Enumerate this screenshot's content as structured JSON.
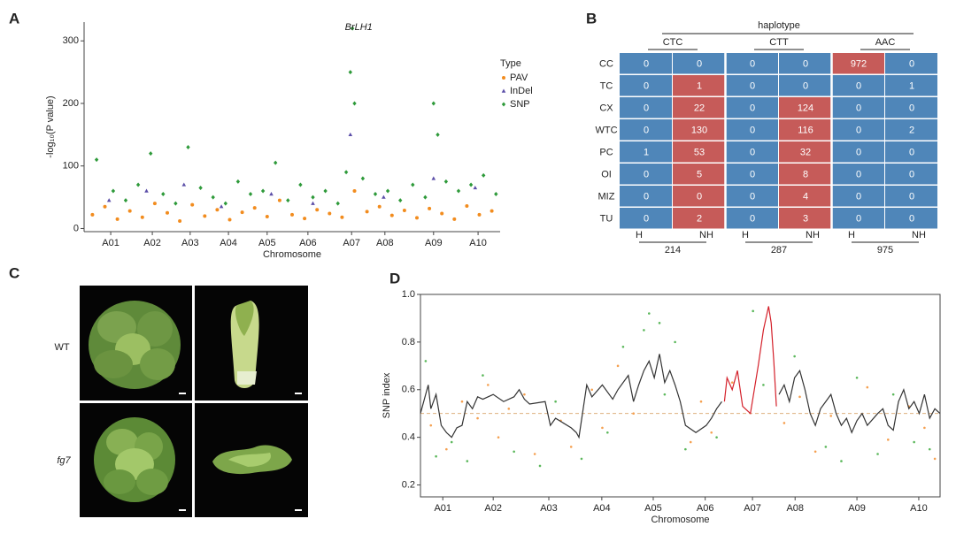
{
  "chart_data": [
    {
      "type": "scatter",
      "panel_label": "A",
      "annotation": "BrLH1",
      "x_label": "Chromosome",
      "y_label": "-log₁₀(P value)",
      "xlim": [
        0,
        100
      ],
      "ylim": [
        -5,
        330
      ],
      "xticks": [
        {
          "value": 6.4,
          "label": "A01"
        },
        {
          "value": 16.4,
          "label": "A02"
        },
        {
          "value": 25.5,
          "label": "A03"
        },
        {
          "value": 34.7,
          "label": "A04"
        },
        {
          "value": 44,
          "label": "A05"
        },
        {
          "value": 53.8,
          "label": "A06"
        },
        {
          "value": 64.3,
          "label": "A07"
        },
        {
          "value": 72.3,
          "label": "A08"
        },
        {
          "value": 84,
          "label": "A09"
        },
        {
          "value": 94.7,
          "label": "A10"
        }
      ],
      "yticks": [
        0,
        100,
        200,
        300
      ],
      "legend_title": "Type",
      "series": [
        {
          "name": "PAV",
          "color": "#f28c1e",
          "marker": "circle",
          "x": [
            2,
            5,
            8,
            11,
            14,
            17,
            20,
            23,
            26,
            29,
            32,
            35,
            38,
            41,
            44,
            47,
            50,
            53,
            56,
            59,
            62,
            65,
            68,
            71,
            74,
            77,
            80,
            83,
            86,
            89,
            92,
            95,
            98
          ],
          "values": [
            22,
            35,
            15,
            28,
            18,
            40,
            25,
            12,
            38,
            20,
            30,
            14,
            26,
            33,
            19,
            45,
            22,
            16,
            30,
            24,
            18,
            60,
            27,
            35,
            21,
            29,
            17,
            32,
            24,
            15,
            36,
            22,
            28
          ]
        },
        {
          "name": "InDel",
          "color": "#5b4ea8",
          "marker": "triangle",
          "x": [
            6,
            15,
            24,
            33,
            45,
            55,
            64,
            72,
            84,
            94
          ],
          "values": [
            45,
            60,
            70,
            35,
            55,
            40,
            150,
            50,
            80,
            65
          ]
        },
        {
          "name": "SNP",
          "color": "#2e9a3a",
          "marker": "diamond",
          "x": [
            3,
            7,
            10,
            13,
            16,
            19,
            22,
            25,
            28,
            31,
            34,
            37,
            40,
            43,
            46,
            49,
            52,
            55,
            58,
            61,
            63,
            64,
            64.5,
            65,
            67,
            70,
            73,
            76,
            79,
            82,
            84,
            85,
            87,
            90,
            93,
            96,
            99
          ],
          "values": [
            110,
            60,
            45,
            70,
            120,
            55,
            40,
            130,
            65,
            50,
            40,
            75,
            55,
            60,
            105,
            45,
            70,
            50,
            60,
            40,
            90,
            250,
            320,
            200,
            80,
            55,
            60,
            45,
            70,
            50,
            200,
            150,
            75,
            60,
            70,
            85,
            55
          ]
        }
      ]
    },
    {
      "type": "scatter",
      "panel_label": "D",
      "frame": true,
      "x_label": "Chromosome",
      "y_label": "SNP index",
      "xlim": [
        0,
        100
      ],
      "ylim": [
        0.15,
        1
      ],
      "xticks": [
        {
          "value": 4.3,
          "label": "A01"
        },
        {
          "value": 14,
          "label": "A02"
        },
        {
          "value": 24.7,
          "label": "A03"
        },
        {
          "value": 34.9,
          "label": "A04"
        },
        {
          "value": 44.8,
          "label": "A05"
        },
        {
          "value": 54.8,
          "label": "A06"
        },
        {
          "value": 63.9,
          "label": "A07"
        },
        {
          "value": 72.1,
          "label": "A08"
        },
        {
          "value": 84,
          "label": "A09"
        },
        {
          "value": 95.9,
          "label": "A10"
        }
      ],
      "yticks": [
        0.2,
        0.4,
        0.6,
        0.8,
        {
          "value": 1,
          "label": "1.0"
        }
      ],
      "reference_line": 0.5,
      "series": [
        {
          "color": "#f5a050",
          "marker": "dot",
          "x": [
            2,
            5,
            8,
            11,
            13,
            15,
            17,
            20,
            22,
            27,
            29,
            33,
            35,
            38,
            41,
            52,
            54,
            56,
            60,
            70,
            73,
            76,
            79,
            86,
            90,
            94,
            97,
            99
          ],
          "values": [
            0.45,
            0.35,
            0.55,
            0.48,
            0.62,
            0.4,
            0.52,
            0.58,
            0.33,
            0.47,
            0.36,
            0.6,
            0.44,
            0.7,
            0.5,
            0.38,
            0.55,
            0.42,
            0.63,
            0.46,
            0.57,
            0.34,
            0.49,
            0.61,
            0.39,
            0.53,
            0.44,
            0.31
          ]
        },
        {
          "color": "#5cb85c",
          "marker": "dot",
          "x": [
            1,
            3,
            6,
            9,
            12,
            18,
            23,
            26,
            31,
            36,
            39,
            43,
            44,
            46,
            47,
            49,
            51,
            57,
            64,
            66,
            72,
            78,
            81,
            84,
            88,
            91,
            95,
            98
          ],
          "values": [
            0.72,
            0.32,
            0.38,
            0.3,
            0.66,
            0.34,
            0.28,
            0.55,
            0.31,
            0.42,
            0.78,
            0.85,
            0.92,
            0.88,
            0.58,
            0.8,
            0.35,
            0.4,
            0.93,
            0.62,
            0.74,
            0.36,
            0.3,
            0.65,
            0.33,
            0.58,
            0.38,
            0.35
          ]
        },
        {
          "type": "line",
          "color": "#333333",
          "x": [
            0,
            1.5,
            2,
            3,
            4,
            5,
            6,
            7,
            8,
            9,
            10,
            11,
            12,
            14,
            16,
            18,
            19,
            20,
            21,
            24,
            25,
            26,
            29,
            30,
            30.5,
            32,
            33,
            35,
            37,
            38,
            40,
            41,
            42,
            43,
            44,
            45,
            46,
            47,
            48,
            49,
            50,
            51,
            53,
            55,
            56,
            57,
            58,
            63,
            69,
            70,
            71,
            72,
            73,
            74,
            75,
            76,
            77,
            78,
            79,
            80,
            81,
            82,
            83,
            84,
            85,
            86,
            88,
            89,
            90,
            91,
            92,
            93,
            94,
            95,
            96,
            97,
            98,
            99,
            100
          ],
          "values": [
            0.5,
            0.62,
            0.52,
            0.58,
            0.45,
            0.42,
            0.4,
            0.44,
            0.45,
            0.55,
            0.52,
            0.57,
            0.56,
            0.58,
            0.55,
            0.57,
            0.6,
            0.56,
            0.54,
            0.55,
            0.45,
            0.48,
            0.44,
            0.42,
            0.4,
            0.62,
            0.57,
            0.62,
            0.56,
            0.6,
            0.66,
            0.55,
            0.62,
            0.68,
            0.72,
            0.65,
            0.75,
            0.63,
            0.68,
            0.62,
            0.55,
            0.45,
            0.42,
            0.45,
            0.48,
            0.52,
            0.55,
            null,
            0.58,
            0.62,
            0.55,
            0.65,
            0.68,
            0.6,
            0.5,
            0.45,
            0.52,
            0.55,
            0.58,
            0.5,
            0.45,
            0.48,
            0.42,
            0.47,
            0.5,
            0.45,
            0.5,
            0.52,
            0.45,
            0.43,
            0.55,
            0.6,
            0.52,
            0.55,
            0.5,
            0.58,
            0.48,
            0.52,
            0.5
          ]
        },
        {
          "type": "line",
          "color": "#d4202a",
          "x": [
            58.5,
            59,
            60,
            61,
            62,
            63.5,
            65,
            66,
            67,
            67.5,
            68,
            68.5
          ],
          "values": [
            0.55,
            0.65,
            0.6,
            0.68,
            0.53,
            0.5,
            0.7,
            0.85,
            0.95,
            0.88,
            0.72,
            0.53
          ]
        }
      ]
    }
  ],
  "table": {
    "panel_label": "B",
    "title": "haplotype",
    "groups": [
      {
        "name": "CTC",
        "total": 214
      },
      {
        "name": "CTT",
        "total": 287
      },
      {
        "name": "AAC",
        "total": 975
      }
    ],
    "subcolumns": [
      "H",
      "NH",
      "H",
      "NH",
      "H",
      "NH"
    ],
    "colors": {
      "normal": "#4f86b9",
      "highlight": "#c65b59"
    },
    "rows": [
      {
        "label": "CC",
        "cells": [
          0,
          0,
          0,
          0,
          972,
          0
        ],
        "highlighted": [
          0,
          0,
          0,
          0,
          1,
          0
        ]
      },
      {
        "label": "TC",
        "cells": [
          0,
          1,
          0,
          0,
          0,
          1
        ],
        "highlighted": [
          0,
          1,
          0,
          0,
          0,
          0
        ]
      },
      {
        "label": "CX",
        "cells": [
          0,
          22,
          0,
          124,
          0,
          0
        ],
        "highlighted": [
          0,
          1,
          0,
          1,
          0,
          0
        ]
      },
      {
        "label": "WTC",
        "cells": [
          0,
          130,
          0,
          116,
          0,
          2
        ],
        "highlighted": [
          0,
          1,
          0,
          1,
          0,
          0
        ]
      },
      {
        "label": "PC",
        "cells": [
          1,
          53,
          0,
          32,
          0,
          0
        ],
        "highlighted": [
          0,
          1,
          0,
          1,
          0,
          0
        ]
      },
      {
        "label": "OI",
        "cells": [
          0,
          5,
          0,
          8,
          0,
          0
        ],
        "highlighted": [
          0,
          1,
          0,
          1,
          0,
          0
        ]
      },
      {
        "label": "MIZ",
        "cells": [
          0,
          0,
          0,
          4,
          0,
          0
        ],
        "highlighted": [
          0,
          1,
          0,
          1,
          0,
          0
        ]
      },
      {
        "label": "TU",
        "cells": [
          0,
          2,
          0,
          3,
          0,
          0
        ],
        "highlighted": [
          0,
          1,
          0,
          1,
          0,
          0
        ]
      }
    ]
  },
  "photos": {
    "panel_label": "C",
    "row_labels": [
      "WT",
      "fg7"
    ]
  }
}
